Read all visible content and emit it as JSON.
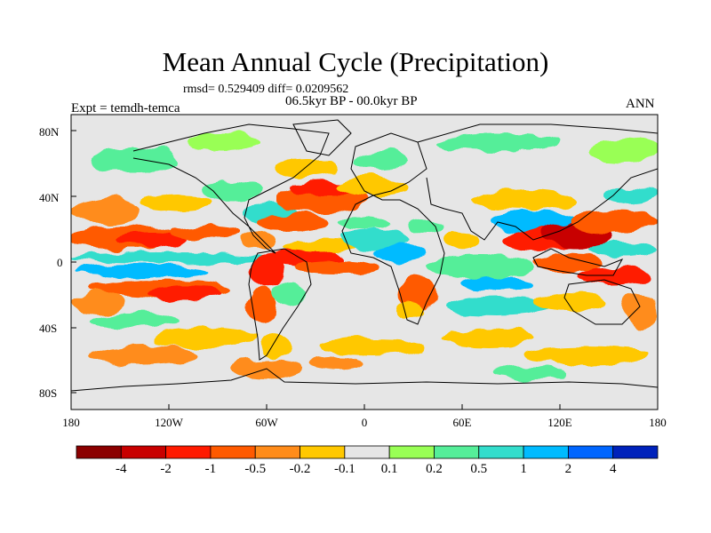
{
  "title": "Mean Annual Cycle (Precipitation)",
  "stats_text": "rmsd= 0.529409 diff= 0.0209562",
  "period_text": "06.5kyr BP - 00.0kyr BP",
  "experiment_text": "Expt = temdh-temca",
  "season_text": "ANN",
  "latitude_labels": [
    "80N",
    "40N",
    "0",
    "40S",
    "80S"
  ],
  "longitude_labels": [
    "180",
    "120W",
    "60W",
    "0",
    "60E",
    "120E",
    "180"
  ],
  "colorbar": {
    "colors": [
      "#8b0000",
      "#c80000",
      "#ff1a00",
      "#ff5a00",
      "#ff8c1a",
      "#ffc800",
      "#e6e6e6",
      "#99ff55",
      "#55ee99",
      "#33ddcc",
      "#00bbff",
      "#0066ff",
      "#0022bb"
    ],
    "tick_labels": [
      "-4",
      "-2",
      "-1",
      "-0.5",
      "-0.2",
      "-0.1",
      "0.1",
      "0.2",
      "0.5",
      "1",
      "2",
      "4"
    ]
  },
  "map": {
    "background_color": "#e6e6e6",
    "variable": "precipitation difference",
    "regions": [
      {
        "name": "tropical-north-pacific-dry",
        "lon": -150,
        "lat": 8,
        "level": -1
      },
      {
        "name": "north-pacific-dry-band",
        "lon": -120,
        "lat": 30,
        "level": -0.5
      },
      {
        "name": "tropical-south-pacific-wet",
        "lon": -130,
        "lat": -5,
        "level": 0.5
      },
      {
        "name": "amazon-dry",
        "lon": -62,
        "lat": -5,
        "level": -1
      },
      {
        "name": "tropical-atlantic-dry",
        "lon": -30,
        "lat": 5,
        "level": -1
      },
      {
        "name": "north-atlantic-dry",
        "lon": -40,
        "lat": 40,
        "level": -0.5
      },
      {
        "name": "sahel-wet",
        "lon": 10,
        "lat": 15,
        "level": 1
      },
      {
        "name": "east-africa-wet",
        "lon": 40,
        "lat": 10,
        "level": 0.5
      },
      {
        "name": "indian-ocean-wet",
        "lon": 70,
        "lat": -5,
        "level": 0.5
      },
      {
        "name": "maritime-continent-dry",
        "lon": 130,
        "lat": 10,
        "level": -2
      },
      {
        "name": "west-pacific-wet",
        "lon": 150,
        "lat": 25,
        "level": 0.5
      },
      {
        "name": "southern-ocean-dry",
        "lon": -100,
        "lat": -45,
        "level": -0.2
      }
    ]
  }
}
